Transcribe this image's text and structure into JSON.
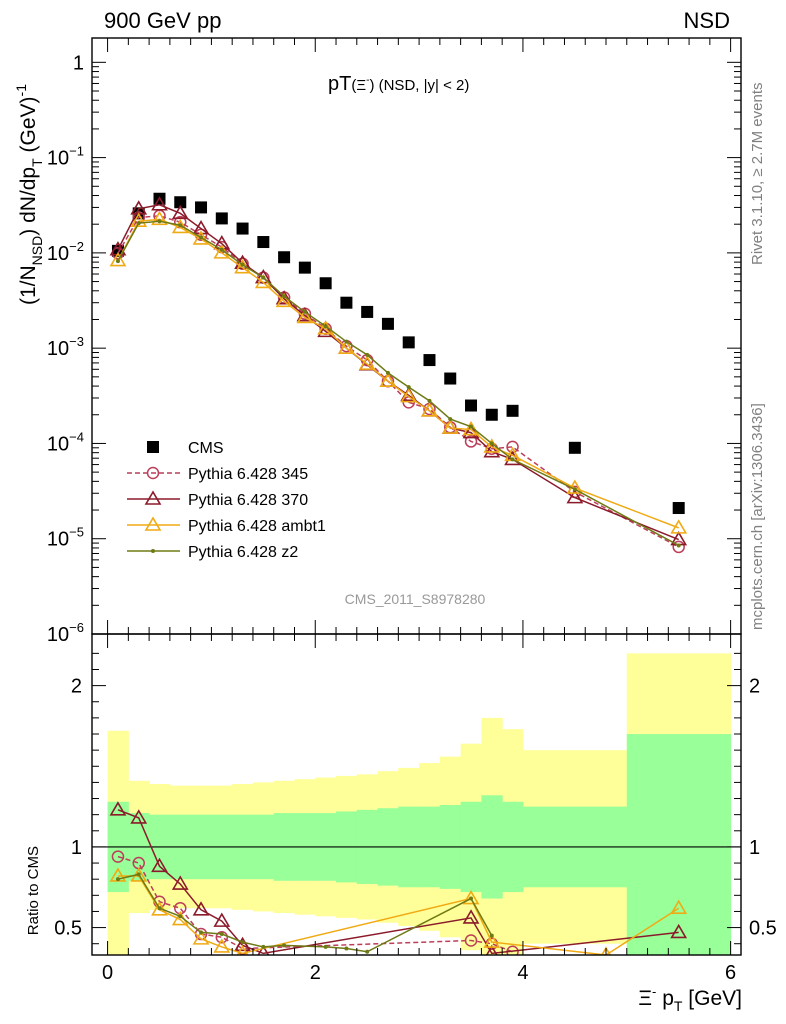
{
  "header": {
    "left": "900 GeV pp",
    "right": "NSD"
  },
  "plot_title": {
    "main": "pT",
    "paren": "(Ξ",
    "sup": "-",
    "close": ")",
    "cuts": " (NSD, |y| < 2)"
  },
  "side_texts": {
    "rivet": "Rivet 3.1.10, ≥ 2.7M events",
    "mcplots": "mcplots.cern.ch [arXiv:1306.3436]"
  },
  "analysis_label": "CMS_2011_S8978280",
  "y_axis_label": {
    "part1": "(1/N",
    "sub1": "NSD",
    "part2": ") dN/dp",
    "sub2": "T",
    "part3": " (GeV)",
    "sup": "-1"
  },
  "ratio_y_label": "Ratio to CMS",
  "x_axis_label": {
    "xi": "Ξ",
    "sup": "-",
    "p": " p",
    "sub": "T",
    "unit": " [GeV]"
  },
  "legend": [
    {
      "label": "CMS",
      "color": "#000000",
      "marker": "square"
    },
    {
      "label": "Pythia 6.428 345",
      "color": "#bc3e5a",
      "marker": "circle"
    },
    {
      "label": "Pythia 6.428 370",
      "color": "#8b1a2a",
      "marker": "triangle"
    },
    {
      "label": "Pythia 6.428 ambt1",
      "color": "#f0aa14",
      "marker": "triangle"
    },
    {
      "label": "Pythia 6.428 z2",
      "color": "#6e7a14",
      "marker": "dot"
    }
  ],
  "chart_data": [
    {
      "type": "scatter",
      "yscale": "log",
      "xlim": [
        -0.15,
        6.1
      ],
      "ylim": [
        1e-06,
        1.8
      ],
      "y_ticks": [
        {
          "v": 1,
          "label": "1",
          "sup": ""
        },
        {
          "v": 0.1,
          "label": "10",
          "sup": "−1"
        },
        {
          "v": 0.01,
          "label": "10",
          "sup": "−2"
        },
        {
          "v": 0.001,
          "label": "10",
          "sup": "−3"
        },
        {
          "v": 0.0001,
          "label": "10",
          "sup": "−4"
        },
        {
          "v": 1e-05,
          "label": "10",
          "sup": "−5"
        },
        {
          "v": 1e-06,
          "label": "10",
          "sup": "−6"
        }
      ],
      "series": [
        {
          "name": "CMS",
          "x": [
            0.1,
            0.3,
            0.5,
            0.7,
            0.9,
            1.1,
            1.3,
            1.5,
            1.7,
            1.9,
            2.1,
            2.3,
            2.5,
            2.7,
            2.9,
            3.1,
            3.3,
            3.5,
            3.7,
            3.9,
            4.5,
            5.5
          ],
          "y": [
            0.0105,
            0.026,
            0.037,
            0.034,
            0.03,
            0.023,
            0.018,
            0.013,
            0.009,
            0.007,
            0.0048,
            0.003,
            0.0024,
            0.0018,
            0.00115,
            0.00075,
            0.00048,
            0.00025,
            0.0002,
            0.00022,
            9e-05,
            2.1e-05
          ]
        },
        {
          "name": "Pythia 6.428 345",
          "x": [
            0.1,
            0.3,
            0.5,
            0.7,
            0.9,
            1.1,
            1.3,
            1.5,
            1.7,
            1.9,
            2.1,
            2.3,
            2.5,
            2.7,
            2.9,
            3.1,
            3.3,
            3.5,
            3.7,
            3.9,
            4.5,
            5.5
          ],
          "y": [
            0.0099,
            0.0235,
            0.0245,
            0.021,
            0.0155,
            0.0115,
            0.0077,
            0.0055,
            0.0034,
            0.0023,
            0.0016,
            0.00105,
            0.00075,
            0.00045,
            0.00027,
            0.00023,
            0.000148,
            0.000105,
            8.8e-05,
            9.2e-05,
            3.1e-05,
            8.2e-06
          ]
        },
        {
          "name": "Pythia 6.428 370",
          "x": [
            0.1,
            0.3,
            0.5,
            0.7,
            0.9,
            1.1,
            1.3,
            1.5,
            1.7,
            1.9,
            2.1,
            2.3,
            2.5,
            2.7,
            2.9,
            3.1,
            3.3,
            3.5,
            3.7,
            3.9,
            4.5,
            5.5
          ],
          "y": [
            0.0108,
            0.029,
            0.032,
            0.026,
            0.018,
            0.0125,
            0.0078,
            0.0055,
            0.0033,
            0.0022,
            0.0015,
            0.001,
            0.00067,
            0.00045,
            0.00032,
            0.00022,
            0.000145,
            0.00013,
            8.2e-05,
            6.8e-05,
            2.7e-05,
            9.8e-06
          ]
        },
        {
          "name": "Pythia 6.428 ambt1",
          "x": [
            0.1,
            0.3,
            0.5,
            0.7,
            0.9,
            1.1,
            1.3,
            1.5,
            1.7,
            1.9,
            2.1,
            2.3,
            2.5,
            2.7,
            2.9,
            3.1,
            3.3,
            3.5,
            3.7,
            3.9,
            4.5,
            5.5
          ],
          "y": [
            0.0083,
            0.0215,
            0.0225,
            0.0185,
            0.014,
            0.01,
            0.007,
            0.0049,
            0.0031,
            0.0021,
            0.0016,
            0.001,
            0.00068,
            0.00045,
            0.00031,
            0.00022,
            0.000145,
            0.00014,
            9.2e-05,
            7.5e-05,
            3.4e-05,
            1.3e-05
          ]
        },
        {
          "name": "Pythia 6.428 z2",
          "x": [
            0.1,
            0.3,
            0.5,
            0.7,
            0.9,
            1.1,
            1.3,
            1.5,
            1.7,
            1.9,
            2.1,
            2.3,
            2.5,
            2.7,
            2.9,
            3.1,
            3.3,
            3.5,
            3.7,
            3.9,
            4.5,
            5.5
          ],
          "y": [
            0.0082,
            0.0205,
            0.0215,
            0.0195,
            0.0145,
            0.0108,
            0.0075,
            0.0055,
            0.0035,
            0.0024,
            0.0017,
            0.00117,
            0.00085,
            0.00055,
            0.00039,
            0.00028,
            0.00018,
            0.00015,
            0.0001,
            6.8e-05,
            3.3e-05,
            8.5e-06
          ]
        }
      ]
    },
    {
      "type": "scatter",
      "ylabel": "Ratio to CMS",
      "xlabel": "Ξ- pT [GeV]",
      "xlim": [
        -0.15,
        6.1
      ],
      "ylim": [
        0.33,
        2.32
      ],
      "x_ticks": [
        0,
        2,
        4,
        6
      ],
      "y_ticks": [
        0.5,
        1,
        2
      ],
      "reference": 1,
      "bands": {
        "edges": [
          0.0,
          0.2,
          0.4,
          0.6,
          0.8,
          1.0,
          1.2,
          1.4,
          1.6,
          1.8,
          2.0,
          2.2,
          2.4,
          2.6,
          2.8,
          3.0,
          3.2,
          3.4,
          3.6,
          3.8,
          4.0,
          5.0,
          6.0
        ],
        "green_half": [
          0.28,
          0.21,
          0.2,
          0.2,
          0.2,
          0.2,
          0.2,
          0.2,
          0.21,
          0.21,
          0.21,
          0.22,
          0.23,
          0.24,
          0.25,
          0.25,
          0.26,
          0.28,
          0.32,
          0.28,
          0.25,
          0.7
        ],
        "yellow_half": [
          0.72,
          0.41,
          0.39,
          0.38,
          0.38,
          0.38,
          0.39,
          0.4,
          0.41,
          0.42,
          0.43,
          0.44,
          0.45,
          0.47,
          0.49,
          0.52,
          0.56,
          0.64,
          0.8,
          0.73,
          0.6,
          1.2
        ]
      },
      "series": [
        {
          "name": "Pythia 6.428 345",
          "x": [
            0.1,
            0.3,
            0.5,
            0.7,
            0.9,
            1.1,
            1.3,
            3.5,
            3.7,
            3.9
          ],
          "y": [
            0.94,
            0.9,
            0.66,
            0.62,
            0.46,
            0.44,
            0.37,
            0.42,
            0.4,
            0.35
          ]
        },
        {
          "name": "Pythia 6.428 370",
          "x": [
            0.1,
            0.3,
            0.5,
            0.7,
            0.9,
            1.1,
            1.3,
            1.5,
            3.5,
            3.7,
            5.5
          ],
          "y": [
            1.23,
            1.18,
            0.88,
            0.77,
            0.61,
            0.54,
            0.39,
            0.34,
            0.56,
            0.34,
            0.47
          ]
        },
        {
          "name": "Pythia 6.428 ambt1",
          "x": [
            0.1,
            0.3,
            0.5,
            0.7,
            0.9,
            1.1,
            1.3,
            3.5,
            3.7,
            4.8,
            5.5
          ],
          "y": [
            0.82,
            0.82,
            0.61,
            0.55,
            0.43,
            0.38,
            0.34,
            0.68,
            0.41,
            0.33,
            0.62
          ]
        },
        {
          "name": "Pythia 6.428 z2",
          "x": [
            0.1,
            0.3,
            0.5,
            0.7,
            0.9,
            1.1,
            1.3,
            1.5,
            1.7,
            2.1,
            2.3,
            2.5,
            3.5,
            3.7
          ],
          "y": [
            0.8,
            0.83,
            0.62,
            0.57,
            0.47,
            0.46,
            0.41,
            0.38,
            0.39,
            0.38,
            0.37,
            0.35,
            0.68,
            0.45
          ]
        }
      ]
    }
  ]
}
